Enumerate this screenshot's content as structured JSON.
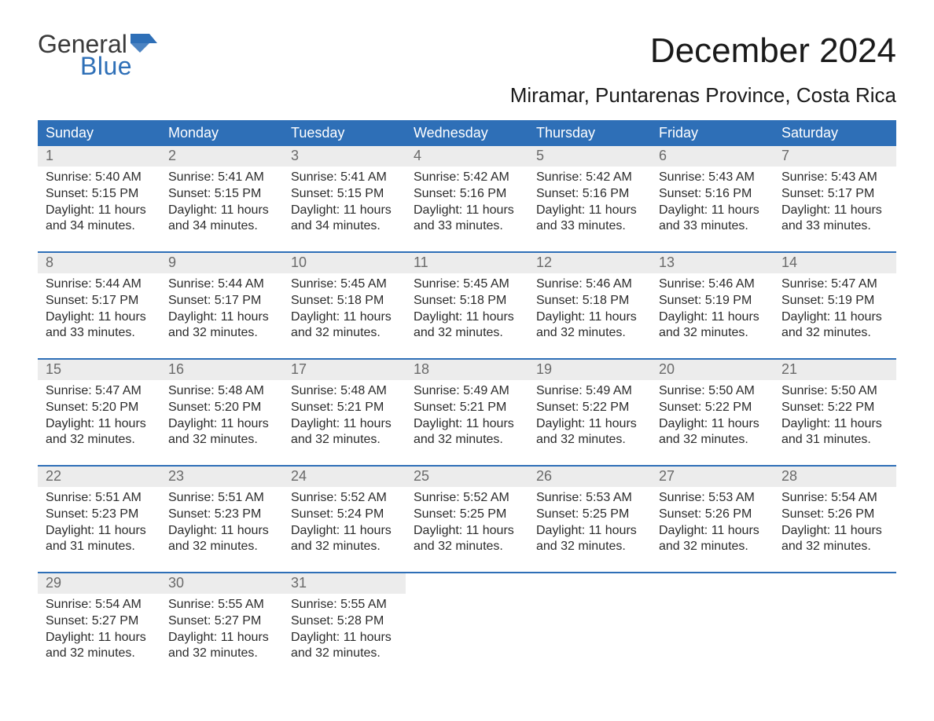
{
  "logo": {
    "line1": "General",
    "line2": "Blue",
    "flag_color": "#2e6fb7"
  },
  "title": "December 2024",
  "subtitle": "Miramar, Puntarenas Province, Costa Rica",
  "colors": {
    "header_bg": "#2e6fb7",
    "header_text": "#ffffff",
    "daynum_bg": "#ececec",
    "daynum_text": "#6a6a6a",
    "body_text": "#2b2b2b",
    "sep": "#2e6fb7"
  },
  "day_headers": [
    "Sunday",
    "Monday",
    "Tuesday",
    "Wednesday",
    "Thursday",
    "Friday",
    "Saturday"
  ],
  "weeks": [
    [
      {
        "n": "1",
        "sunrise": "5:40 AM",
        "sunset": "5:15 PM",
        "daylight": "11 hours and 34 minutes."
      },
      {
        "n": "2",
        "sunrise": "5:41 AM",
        "sunset": "5:15 PM",
        "daylight": "11 hours and 34 minutes."
      },
      {
        "n": "3",
        "sunrise": "5:41 AM",
        "sunset": "5:15 PM",
        "daylight": "11 hours and 34 minutes."
      },
      {
        "n": "4",
        "sunrise": "5:42 AM",
        "sunset": "5:16 PM",
        "daylight": "11 hours and 33 minutes."
      },
      {
        "n": "5",
        "sunrise": "5:42 AM",
        "sunset": "5:16 PM",
        "daylight": "11 hours and 33 minutes."
      },
      {
        "n": "6",
        "sunrise": "5:43 AM",
        "sunset": "5:16 PM",
        "daylight": "11 hours and 33 minutes."
      },
      {
        "n": "7",
        "sunrise": "5:43 AM",
        "sunset": "5:17 PM",
        "daylight": "11 hours and 33 minutes."
      }
    ],
    [
      {
        "n": "8",
        "sunrise": "5:44 AM",
        "sunset": "5:17 PM",
        "daylight": "11 hours and 33 minutes."
      },
      {
        "n": "9",
        "sunrise": "5:44 AM",
        "sunset": "5:17 PM",
        "daylight": "11 hours and 32 minutes."
      },
      {
        "n": "10",
        "sunrise": "5:45 AM",
        "sunset": "5:18 PM",
        "daylight": "11 hours and 32 minutes."
      },
      {
        "n": "11",
        "sunrise": "5:45 AM",
        "sunset": "5:18 PM",
        "daylight": "11 hours and 32 minutes."
      },
      {
        "n": "12",
        "sunrise": "5:46 AM",
        "sunset": "5:18 PM",
        "daylight": "11 hours and 32 minutes."
      },
      {
        "n": "13",
        "sunrise": "5:46 AM",
        "sunset": "5:19 PM",
        "daylight": "11 hours and 32 minutes."
      },
      {
        "n": "14",
        "sunrise": "5:47 AM",
        "sunset": "5:19 PM",
        "daylight": "11 hours and 32 minutes."
      }
    ],
    [
      {
        "n": "15",
        "sunrise": "5:47 AM",
        "sunset": "5:20 PM",
        "daylight": "11 hours and 32 minutes."
      },
      {
        "n": "16",
        "sunrise": "5:48 AM",
        "sunset": "5:20 PM",
        "daylight": "11 hours and 32 minutes."
      },
      {
        "n": "17",
        "sunrise": "5:48 AM",
        "sunset": "5:21 PM",
        "daylight": "11 hours and 32 minutes."
      },
      {
        "n": "18",
        "sunrise": "5:49 AM",
        "sunset": "5:21 PM",
        "daylight": "11 hours and 32 minutes."
      },
      {
        "n": "19",
        "sunrise": "5:49 AM",
        "sunset": "5:22 PM",
        "daylight": "11 hours and 32 minutes."
      },
      {
        "n": "20",
        "sunrise": "5:50 AM",
        "sunset": "5:22 PM",
        "daylight": "11 hours and 32 minutes."
      },
      {
        "n": "21",
        "sunrise": "5:50 AM",
        "sunset": "5:22 PM",
        "daylight": "11 hours and 31 minutes."
      }
    ],
    [
      {
        "n": "22",
        "sunrise": "5:51 AM",
        "sunset": "5:23 PM",
        "daylight": "11 hours and 31 minutes."
      },
      {
        "n": "23",
        "sunrise": "5:51 AM",
        "sunset": "5:23 PM",
        "daylight": "11 hours and 32 minutes."
      },
      {
        "n": "24",
        "sunrise": "5:52 AM",
        "sunset": "5:24 PM",
        "daylight": "11 hours and 32 minutes."
      },
      {
        "n": "25",
        "sunrise": "5:52 AM",
        "sunset": "5:25 PM",
        "daylight": "11 hours and 32 minutes."
      },
      {
        "n": "26",
        "sunrise": "5:53 AM",
        "sunset": "5:25 PM",
        "daylight": "11 hours and 32 minutes."
      },
      {
        "n": "27",
        "sunrise": "5:53 AM",
        "sunset": "5:26 PM",
        "daylight": "11 hours and 32 minutes."
      },
      {
        "n": "28",
        "sunrise": "5:54 AM",
        "sunset": "5:26 PM",
        "daylight": "11 hours and 32 minutes."
      }
    ],
    [
      {
        "n": "29",
        "sunrise": "5:54 AM",
        "sunset": "5:27 PM",
        "daylight": "11 hours and 32 minutes."
      },
      {
        "n": "30",
        "sunrise": "5:55 AM",
        "sunset": "5:27 PM",
        "daylight": "11 hours and 32 minutes."
      },
      {
        "n": "31",
        "sunrise": "5:55 AM",
        "sunset": "5:28 PM",
        "daylight": "11 hours and 32 minutes."
      },
      null,
      null,
      null,
      null
    ]
  ],
  "labels": {
    "sunrise": "Sunrise:",
    "sunset": "Sunset:",
    "daylight": "Daylight:"
  }
}
